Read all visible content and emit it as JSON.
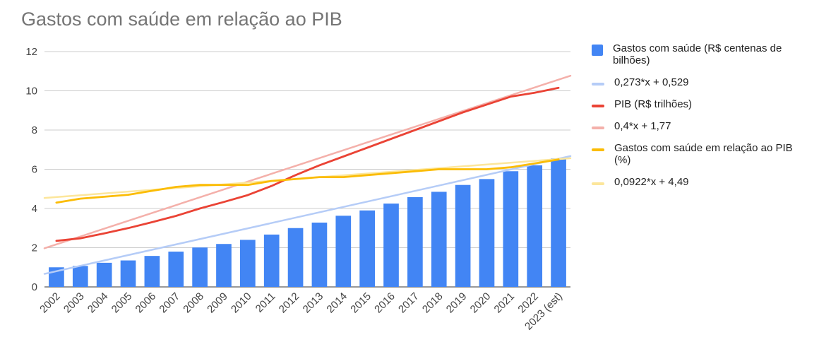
{
  "chart_data": {
    "type": "bar",
    "title": "Gastos com saúde em relação ao PIB",
    "xlabel": "",
    "ylabel": "",
    "ylim": [
      0,
      12
    ],
    "yticks": [
      "0",
      "2",
      "4",
      "6",
      "8",
      "10",
      "12"
    ],
    "grid": true,
    "legend_position": "right",
    "categories": [
      "2002",
      "2003",
      "2004",
      "2005",
      "2006",
      "2007",
      "2008",
      "2009",
      "2010",
      "2011",
      "2012",
      "2013",
      "2014",
      "2015",
      "2016",
      "2017",
      "2018",
      "2019",
      "2020",
      "2021",
      "2022",
      "2023 (est)"
    ],
    "series": [
      {
        "name": "Gastos com saúde (R$ centenas de bilhões)",
        "kind": "bar",
        "color": "#4285F4",
        "values": [
          1.0,
          1.07,
          1.23,
          1.35,
          1.58,
          1.8,
          2.01,
          2.19,
          2.4,
          2.67,
          3.0,
          3.28,
          3.63,
          3.9,
          4.25,
          4.58,
          4.85,
          5.2,
          5.5,
          5.9,
          6.2,
          6.55
        ]
      },
      {
        "name": "0,273*x + 0,529",
        "kind": "trendline",
        "color": "#B5CCF7",
        "slope": 0.273,
        "intercept": 0.529
      },
      {
        "name": "PIB (R$ trilhões)",
        "kind": "line",
        "color": "#EA4335",
        "values": [
          2.35,
          2.48,
          2.73,
          3.0,
          3.3,
          3.62,
          4.0,
          4.33,
          4.68,
          5.15,
          5.7,
          6.2,
          6.65,
          7.1,
          7.55,
          8.0,
          8.45,
          8.9,
          9.3,
          9.7,
          9.9,
          10.15
        ]
      },
      {
        "name": "0,4*x + 1,77",
        "kind": "trendline",
        "color": "#F4B0AA",
        "slope": 0.4,
        "intercept": 1.77
      },
      {
        "name": "Gastos com saúde em relação ao PIB (%)",
        "kind": "line",
        "color": "#FBBC04",
        "values": [
          4.3,
          4.5,
          4.6,
          4.7,
          4.9,
          5.1,
          5.2,
          5.2,
          5.2,
          5.4,
          5.5,
          5.6,
          5.6,
          5.7,
          5.8,
          5.9,
          6.0,
          6.0,
          6.0,
          6.1,
          6.3,
          6.5
        ]
      },
      {
        "name": "0,0922*x + 4,49",
        "kind": "trendline",
        "color": "#FCE69B",
        "slope": 0.0922,
        "intercept": 4.49
      }
    ]
  }
}
